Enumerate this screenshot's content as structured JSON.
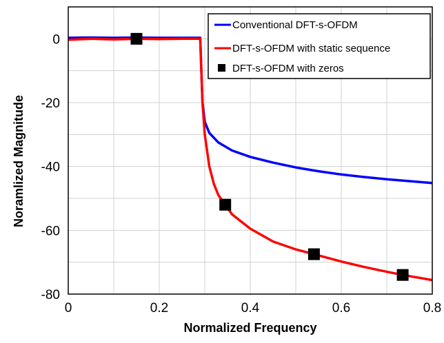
{
  "chart_data": {
    "type": "line",
    "xlabel": "Normalized Frequency",
    "ylabel": "Noramlized Magnitude",
    "xlim": [
      0,
      0.8
    ],
    "ylim": [
      -80,
      10
    ],
    "xticks": [
      "0",
      "0.2",
      "0.4",
      "0.6",
      "0.8"
    ],
    "yticks": [
      "0",
      "-20",
      "-40",
      "-60",
      "-80"
    ],
    "grid": true,
    "legend_position": "top-right",
    "series": [
      {
        "name": "Conventional DFT-s-OFDM",
        "color": "#0000ff",
        "style": "line",
        "x": [
          0,
          0.05,
          0.1,
          0.15,
          0.2,
          0.25,
          0.29,
          0.295,
          0.3,
          0.31,
          0.33,
          0.36,
          0.4,
          0.45,
          0.5,
          0.55,
          0.6,
          0.65,
          0.7,
          0.75,
          0.8
        ],
        "y": [
          0.3,
          0.4,
          0.3,
          0.4,
          0.3,
          0.3,
          0.3,
          -20,
          -26,
          -29.5,
          -32.5,
          -35,
          -37,
          -38.8,
          -40.3,
          -41.5,
          -42.5,
          -43.3,
          -44,
          -44.6,
          -45.2
        ]
      },
      {
        "name": "DFT-s-OFDM with static sequence",
        "color": "#ff0000",
        "style": "line",
        "x": [
          0,
          0.05,
          0.1,
          0.15,
          0.2,
          0.25,
          0.29,
          0.295,
          0.3,
          0.31,
          0.32,
          0.33,
          0.345,
          0.36,
          0.4,
          0.45,
          0.5,
          0.54,
          0.6,
          0.65,
          0.7,
          0.735,
          0.8
        ],
        "y": [
          -0.3,
          0,
          -0.2,
          0,
          -0.1,
          0,
          0,
          -20,
          -30,
          -40,
          -45.5,
          -49,
          -52,
          -55,
          -59.5,
          -63.5,
          -66,
          -67.5,
          -69.8,
          -71.5,
          -73,
          -74,
          -75.6
        ]
      },
      {
        "name": "DFT-s-OFDM with zeros",
        "color": "#000000",
        "style": "markers",
        "x": [
          0.15,
          0.345,
          0.54,
          0.735
        ],
        "y": [
          0,
          -52,
          -67.5,
          -74
        ]
      }
    ]
  }
}
